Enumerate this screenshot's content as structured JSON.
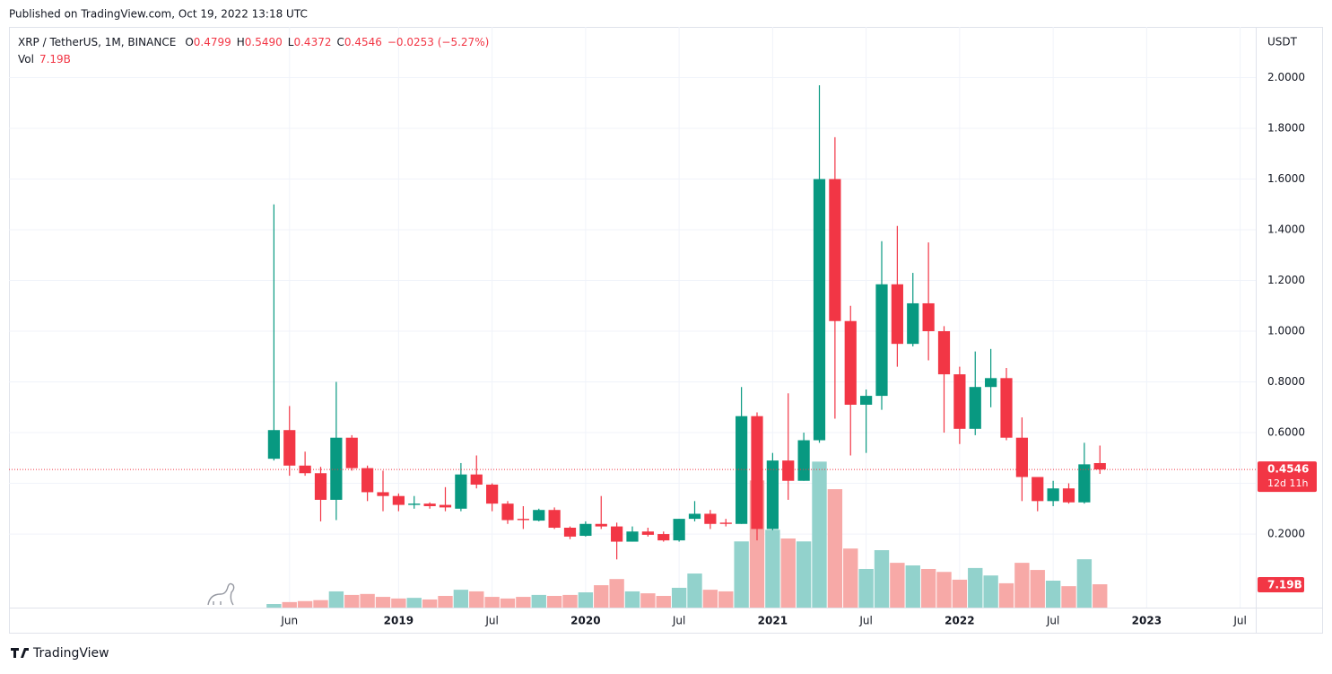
{
  "chart_data": {
    "type": "candlestick",
    "published": "Published on TradingView.com, Oct 19, 2022 13:18 UTC",
    "symbol": "XRP / TetherUS, 1M, BINANCE",
    "ohlc_labels": [
      "O",
      "H",
      "L",
      "C"
    ],
    "ohlc_value_labels": [
      "0.4799",
      "0.5490",
      "0.4372",
      "0.4546"
    ],
    "change": "−0.0253 (−5.27%)",
    "currency": "USDT",
    "countdown": "12d 11h",
    "brand": "TradingView",
    "up_color": "#089981",
    "down_color": "#f23645",
    "up_volume_color": "#92d2cc",
    "down_volume_color": "#f7a9a7",
    "grid": true,
    "x": [
      "2018-05",
      "2018-06",
      "2018-07",
      "2018-08",
      "2018-09",
      "2018-10",
      "2018-11",
      "2018-12",
      "2019-01",
      "2019-02",
      "2019-03",
      "2019-04",
      "2019-05",
      "2019-06",
      "2019-07",
      "2019-08",
      "2019-09",
      "2019-10",
      "2019-11",
      "2019-12",
      "2020-01",
      "2020-02",
      "2020-03",
      "2020-04",
      "2020-05",
      "2020-06",
      "2020-07",
      "2020-08",
      "2020-09",
      "2020-10",
      "2020-11",
      "2020-12",
      "2021-01",
      "2021-02",
      "2021-03",
      "2021-04",
      "2021-05",
      "2021-06",
      "2021-07",
      "2021-08",
      "2021-09",
      "2021-10",
      "2021-11",
      "2021-12",
      "2022-01",
      "2022-02",
      "2022-03",
      "2022-04",
      "2022-05",
      "2022-06",
      "2022-07",
      "2022-08",
      "2022-09",
      "2022-10"
    ],
    "open": [
      0.497,
      0.61,
      0.47,
      0.44,
      0.335,
      0.58,
      0.46,
      0.365,
      0.35,
      0.315,
      0.32,
      0.315,
      0.3,
      0.435,
      0.395,
      0.32,
      0.26,
      0.253,
      0.295,
      0.225,
      0.193,
      0.24,
      0.23,
      0.17,
      0.21,
      0.2,
      0.175,
      0.26,
      0.28,
      0.245,
      0.24,
      0.665,
      0.22,
      0.49,
      0.41,
      0.57,
      1.6,
      1.04,
      0.71,
      0.745,
      1.185,
      0.95,
      1.11,
      1.0,
      0.83,
      0.615,
      0.78,
      0.815,
      0.58,
      0.425,
      0.33,
      0.38,
      0.325,
      0.4799
    ],
    "high": [
      1.5,
      0.705,
      0.525,
      0.465,
      0.8,
      0.59,
      0.47,
      0.45,
      0.36,
      0.35,
      0.325,
      0.385,
      0.48,
      0.51,
      0.4,
      0.33,
      0.31,
      0.3,
      0.305,
      0.23,
      0.25,
      0.35,
      0.245,
      0.23,
      0.225,
      0.21,
      0.26,
      0.33,
      0.295,
      0.26,
      0.78,
      0.68,
      0.52,
      0.755,
      0.6,
      1.97,
      1.765,
      1.1,
      0.77,
      1.355,
      1.415,
      1.23,
      1.35,
      1.02,
      0.86,
      0.92,
      0.93,
      0.855,
      0.66,
      0.425,
      0.41,
      0.4,
      0.56,
      0.549
    ],
    "low": [
      0.49,
      0.43,
      0.43,
      0.25,
      0.255,
      0.45,
      0.33,
      0.29,
      0.29,
      0.3,
      0.3,
      0.29,
      0.29,
      0.38,
      0.29,
      0.24,
      0.22,
      0.25,
      0.22,
      0.18,
      0.19,
      0.22,
      0.1,
      0.17,
      0.19,
      0.17,
      0.17,
      0.25,
      0.22,
      0.23,
      0.24,
      0.175,
      0.215,
      0.335,
      0.41,
      0.56,
      0.655,
      0.51,
      0.52,
      0.69,
      0.86,
      0.94,
      0.885,
      0.6,
      0.555,
      0.59,
      0.7,
      0.57,
      0.33,
      0.29,
      0.31,
      0.32,
      0.32,
      0.4372
    ],
    "close": [
      0.61,
      0.47,
      0.44,
      0.335,
      0.58,
      0.46,
      0.365,
      0.35,
      0.315,
      0.32,
      0.31,
      0.305,
      0.435,
      0.395,
      0.32,
      0.255,
      0.255,
      0.295,
      0.225,
      0.19,
      0.24,
      0.23,
      0.17,
      0.21,
      0.197,
      0.175,
      0.26,
      0.28,
      0.24,
      0.24,
      0.665,
      0.22,
      0.49,
      0.41,
      0.57,
      1.6,
      1.04,
      0.71,
      0.745,
      1.185,
      0.95,
      1.11,
      1.0,
      0.83,
      0.615,
      0.78,
      0.815,
      0.58,
      0.425,
      0.33,
      0.38,
      0.325,
      0.475,
      0.4546
    ],
    "volume": {
      "name": "Vol",
      "last_label": "7.19B",
      "values": [
        1.1,
        1.7,
        2.0,
        2.3,
        5.0,
        3.9,
        4.2,
        3.3,
        2.8,
        3.0,
        2.5,
        3.6,
        5.5,
        5.0,
        3.3,
        2.8,
        3.3,
        3.9,
        3.6,
        3.9,
        4.7,
        6.9,
        8.8,
        5.0,
        4.4,
        3.6,
        6.1,
        10.5,
        5.5,
        5.0,
        20.4,
        39.2,
        24.0,
        21.3,
        20.4,
        45.0,
        36.5,
        18.2,
        11.9,
        17.7,
        13.8,
        13.0,
        11.9,
        11.0,
        8.6,
        12.2,
        9.9,
        7.5,
        13.8,
        11.6,
        8.3,
        6.6,
        14.9,
        7.19
      ]
    },
    "volume_ylim": [
      0,
      179
    ],
    "xlim": [
      "2016-12",
      "2023-08"
    ],
    "xticks": [
      {
        "value": "2018-06",
        "label": "Jun"
      },
      {
        "value": "2019-01",
        "label": "2019"
      },
      {
        "value": "2019-07",
        "label": "Jul"
      },
      {
        "value": "2020-01",
        "label": "2020"
      },
      {
        "value": "2020-07",
        "label": "Jul"
      },
      {
        "value": "2021-01",
        "label": "2021"
      },
      {
        "value": "2021-07",
        "label": "Jul"
      },
      {
        "value": "2022-01",
        "label": "2022"
      },
      {
        "value": "2022-07",
        "label": "Jul"
      },
      {
        "value": "2023-01",
        "label": "2023"
      },
      {
        "value": "2023-07",
        "label": "Jul"
      }
    ],
    "ylim": [
      -0.09,
      2.2
    ],
    "yticks": [
      {
        "value": 0.2,
        "label": "0.2000"
      },
      {
        "value": 0.4,
        "label": "0.4000"
      },
      {
        "value": 0.6,
        "label": "0.6000"
      },
      {
        "value": 0.8,
        "label": "0.8000"
      },
      {
        "value": 1.0,
        "label": "1.0000"
      },
      {
        "value": 1.2,
        "label": "1.2000"
      },
      {
        "value": 1.4,
        "label": "1.4000"
      },
      {
        "value": 1.6,
        "label": "1.6000"
      },
      {
        "value": 1.8,
        "label": "1.8000"
      },
      {
        "value": 2.0,
        "label": "2.0000"
      }
    ]
  }
}
